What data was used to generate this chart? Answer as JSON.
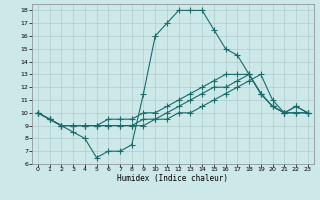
{
  "xlabel": "Humidex (Indice chaleur)",
  "bg_color": "#cce8e8",
  "line_color": "#1a6b6b",
  "grid_color": "#b8d8d8",
  "ylim": [
    6,
    18.5
  ],
  "xlim": [
    -0.5,
    23.5
  ],
  "yticks": [
    6,
    7,
    8,
    9,
    10,
    11,
    12,
    13,
    14,
    15,
    16,
    17,
    18
  ],
  "xticks": [
    0,
    1,
    2,
    3,
    4,
    5,
    6,
    7,
    8,
    9,
    10,
    11,
    12,
    13,
    14,
    15,
    16,
    17,
    18,
    19,
    20,
    21,
    22,
    23
  ],
  "line1_x": [
    0,
    1,
    2,
    3,
    4,
    5,
    6,
    7,
    8,
    9,
    10,
    11,
    12,
    13,
    14,
    15,
    16,
    17,
    18,
    19,
    20,
    21,
    22,
    23
  ],
  "line1_y": [
    10,
    9.5,
    9,
    8.5,
    8,
    6.5,
    7,
    7,
    7.5,
    11.5,
    16,
    17,
    18,
    18,
    18,
    16.5,
    15,
    14.5,
    13,
    11.5,
    10.5,
    10,
    10.5,
    10
  ],
  "line2_x": [
    0,
    1,
    2,
    3,
    4,
    5,
    6,
    7,
    8,
    9,
    10,
    11,
    12,
    13,
    14,
    15,
    16,
    17,
    18,
    19,
    20,
    21,
    22,
    23
  ],
  "line2_y": [
    10,
    9.5,
    9,
    9,
    9,
    9,
    9.5,
    9.5,
    9.5,
    10,
    10,
    10.5,
    11,
    11.5,
    12,
    12.5,
    13,
    13,
    13,
    11.5,
    10.5,
    10,
    10.5,
    10
  ],
  "line3_x": [
    0,
    1,
    2,
    3,
    4,
    5,
    6,
    7,
    8,
    9,
    10,
    11,
    12,
    13,
    14,
    15,
    16,
    17,
    18,
    19,
    20,
    21,
    22,
    23
  ],
  "line3_y": [
    10,
    9.5,
    9,
    9,
    9,
    9,
    9,
    9,
    9,
    9.5,
    9.5,
    10,
    10.5,
    11,
    11.5,
    12,
    12,
    12.5,
    13,
    11.5,
    10.5,
    10,
    10,
    10
  ],
  "line4_x": [
    0,
    1,
    2,
    3,
    4,
    5,
    6,
    7,
    8,
    9,
    10,
    11,
    12,
    13,
    14,
    15,
    16,
    17,
    18,
    19,
    20,
    21,
    22,
    23
  ],
  "line4_y": [
    10,
    9.5,
    9,
    9,
    9,
    9,
    9,
    9,
    9,
    9,
    9.5,
    9.5,
    10,
    10,
    10.5,
    11,
    11.5,
    12,
    12.5,
    13,
    11,
    10,
    10,
    10
  ]
}
